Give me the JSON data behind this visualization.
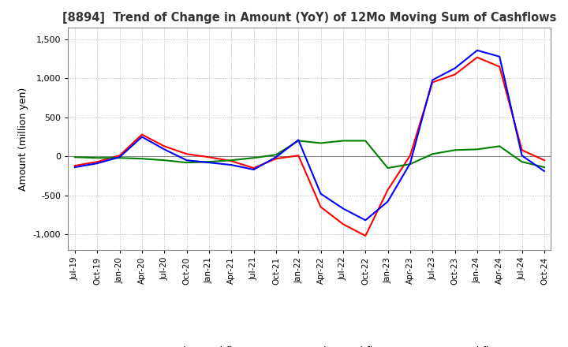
{
  "title": "[8894]  Trend of Change in Amount (YoY) of 12Mo Moving Sum of Cashflows",
  "ylabel": "Amount (million yen)",
  "ylim": [
    -1200,
    1650
  ],
  "yticks": [
    -1000,
    -500,
    0,
    500,
    1000,
    1500
  ],
  "background_color": "#ffffff",
  "plot_bg_color": "#ffffff",
  "grid_color": "#aaaaaa",
  "dates": [
    "Jul-19",
    "Oct-19",
    "Jan-20",
    "Apr-20",
    "Jul-20",
    "Oct-20",
    "Jan-21",
    "Apr-21",
    "Jul-21",
    "Oct-21",
    "Jan-22",
    "Apr-22",
    "Jul-22",
    "Oct-22",
    "Jan-23",
    "Apr-23",
    "Jul-23",
    "Oct-23",
    "Jan-24",
    "Apr-24",
    "Jul-24",
    "Oct-24"
  ],
  "operating": [
    -120,
    -70,
    10,
    280,
    130,
    30,
    -10,
    -60,
    -150,
    -30,
    10,
    -650,
    -870,
    -1020,
    -430,
    10,
    950,
    1050,
    1270,
    1150,
    80,
    -50
  ],
  "investing": [
    -10,
    -20,
    -20,
    -30,
    -50,
    -80,
    -70,
    -50,
    -20,
    20,
    200,
    170,
    200,
    200,
    -150,
    -100,
    30,
    80,
    90,
    130,
    -70,
    -140
  ],
  "free": [
    -140,
    -90,
    -10,
    250,
    90,
    -50,
    -80,
    -110,
    -170,
    -10,
    210,
    -480,
    -670,
    -820,
    -580,
    -90,
    980,
    1130,
    1360,
    1280,
    10,
    -190
  ],
  "op_color": "#ff0000",
  "inv_color": "#008000",
  "free_color": "#0000ff",
  "line_width": 1.5
}
